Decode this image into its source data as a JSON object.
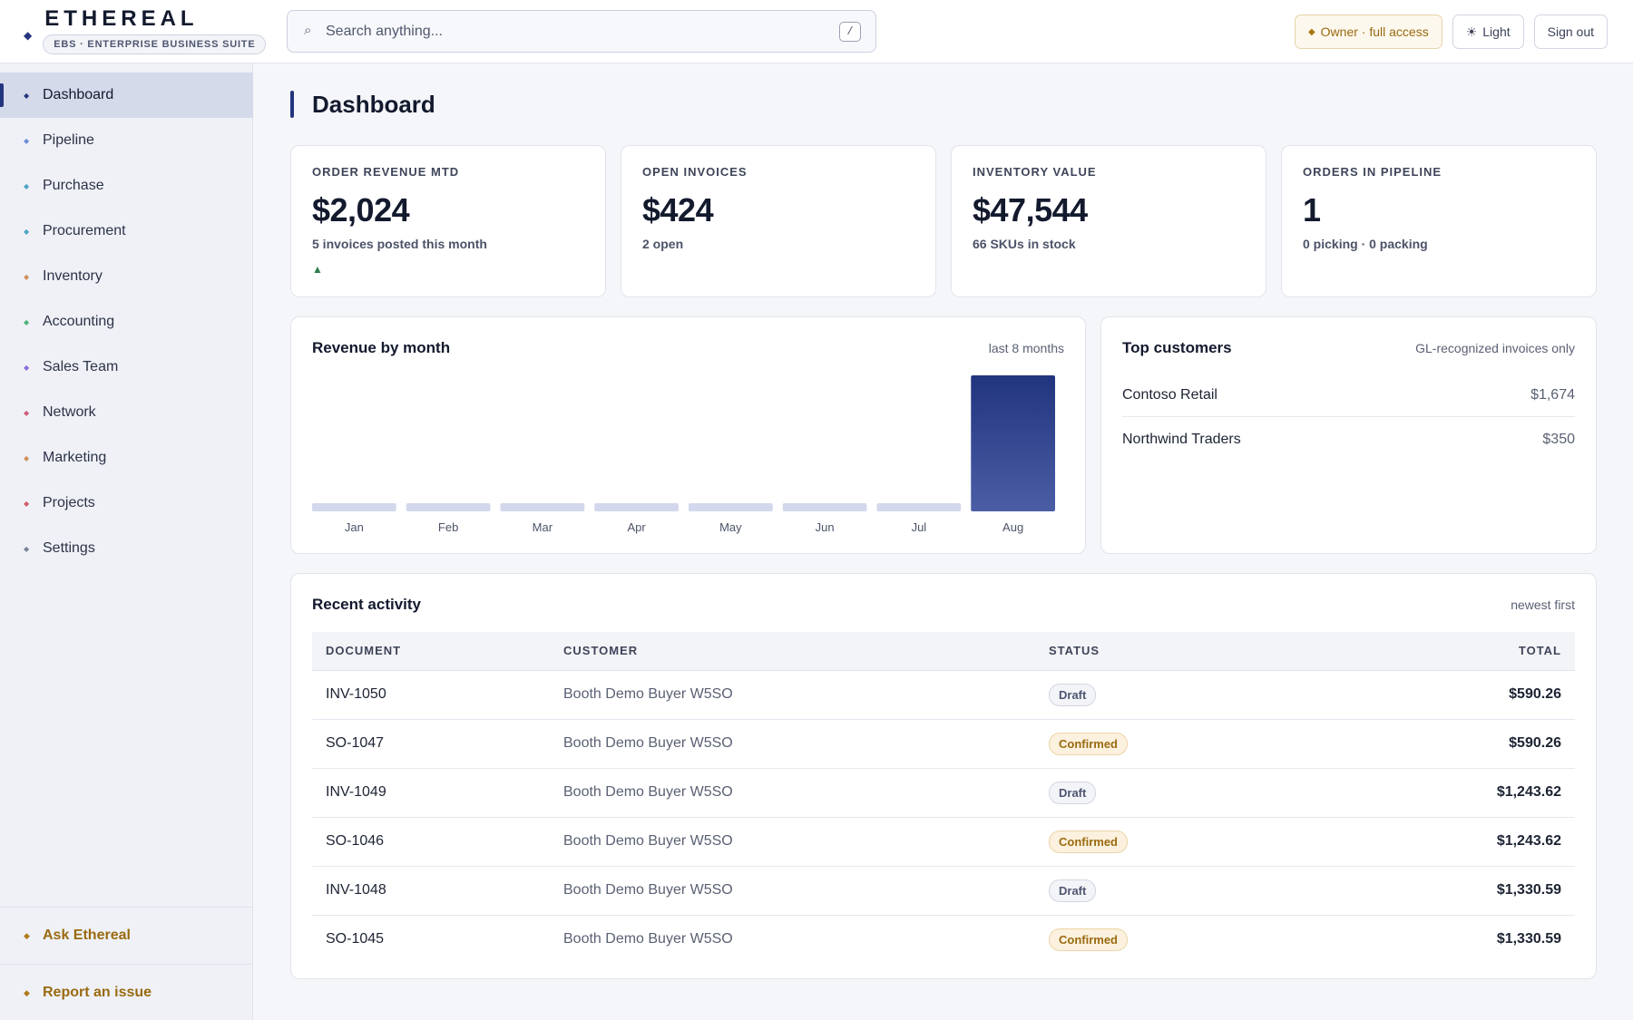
{
  "app": {
    "name": "ETHEREAL",
    "tagline": "EBS · ENTERPRISE BUSINESS SUITE"
  },
  "search": {
    "placeholder": "Search anything...",
    "shortcut": "/"
  },
  "top_actions": {
    "role": "Owner · full access",
    "theme": "Light",
    "sign_out": "Sign out"
  },
  "sidebar": {
    "items": [
      {
        "label": "Dashboard",
        "color": "#24357f",
        "active": true
      },
      {
        "label": "Pipeline",
        "color": "#6f8fd6"
      },
      {
        "label": "Purchase",
        "color": "#4fa6c4"
      },
      {
        "label": "Procurement",
        "color": "#4fa6c4"
      },
      {
        "label": "Inventory",
        "color": "#d1915c"
      },
      {
        "label": "Accounting",
        "color": "#4fb37a"
      },
      {
        "label": "Sales Team",
        "color": "#8a6fd6"
      },
      {
        "label": "Network",
        "color": "#d15c7a"
      },
      {
        "label": "Marketing",
        "color": "#d1915c"
      },
      {
        "label": "Projects",
        "color": "#d15c6a"
      },
      {
        "label": "Settings",
        "color": "#7a8299"
      }
    ],
    "ask": "Ask Ethereal",
    "report": "Report an issue"
  },
  "page": {
    "title": "Dashboard"
  },
  "kpis": [
    {
      "label": "ORDER REVENUE MTD",
      "value": "$2,024",
      "sub": "5 invoices posted this month",
      "trend": "▲"
    },
    {
      "label": "OPEN INVOICES",
      "value": "$424",
      "sub": "2 open"
    },
    {
      "label": "INVENTORY VALUE",
      "value": "$47,544",
      "sub": "66 SKUs in stock"
    },
    {
      "label": "ORDERS IN PIPELINE",
      "value": "1",
      "sub": "0 picking · 0 packing"
    }
  ],
  "revenue_card": {
    "title": "Revenue by month",
    "note": "last 8 months"
  },
  "chart_data": {
    "type": "bar",
    "title": "Revenue by month",
    "categories": [
      "Jan",
      "Feb",
      "Mar",
      "Apr",
      "May",
      "Jun",
      "Jul",
      "Aug"
    ],
    "values": [
      0,
      0,
      0,
      0,
      0,
      0,
      0,
      2024
    ],
    "ylim": [
      0,
      2024
    ],
    "grid": false,
    "colors": {
      "bar_top": "#21347e",
      "bar_bottom": "#4b5ea5",
      "empty_bar": "#d3d8ec"
    }
  },
  "top_customers": {
    "title": "Top customers",
    "note": "GL-recognized invoices only",
    "rows": [
      {
        "name": "Contoso Retail",
        "amount": "$1,674"
      },
      {
        "name": "Northwind Traders",
        "amount": "$350"
      }
    ]
  },
  "activity": {
    "title": "Recent activity",
    "note": "newest first",
    "columns": [
      "DOCUMENT",
      "CUSTOMER",
      "STATUS",
      "TOTAL"
    ],
    "rows": [
      {
        "document": "INV-1050",
        "customer": "Booth Demo Buyer W5SO",
        "status": "Draft",
        "total": "$590.26"
      },
      {
        "document": "SO-1047",
        "customer": "Booth Demo Buyer W5SO",
        "status": "Confirmed",
        "total": "$590.26"
      },
      {
        "document": "INV-1049",
        "customer": "Booth Demo Buyer W5SO",
        "status": "Draft",
        "total": "$1,243.62"
      },
      {
        "document": "SO-1046",
        "customer": "Booth Demo Buyer W5SO",
        "status": "Confirmed",
        "total": "$1,243.62"
      },
      {
        "document": "INV-1048",
        "customer": "Booth Demo Buyer W5SO",
        "status": "Draft",
        "total": "$1,330.59"
      },
      {
        "document": "SO-1045",
        "customer": "Booth Demo Buyer W5SO",
        "status": "Confirmed",
        "total": "$1,330.59"
      }
    ]
  }
}
